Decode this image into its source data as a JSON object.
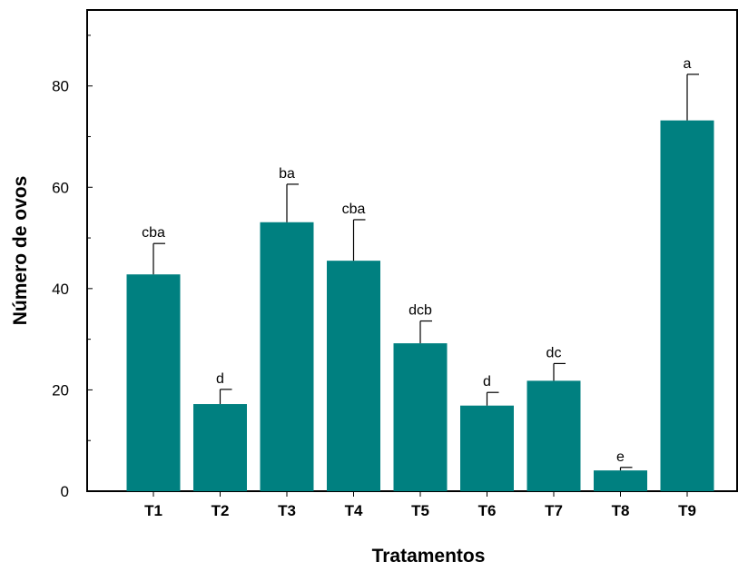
{
  "colors": {
    "bar": "#008080",
    "axis": "#000000",
    "error_bar": "#000000"
  },
  "chart_data": {
    "type": "bar",
    "title": "",
    "xlabel": "Tratamentos",
    "ylabel": "Número de ovos",
    "ylim": [
      0,
      95
    ],
    "yticks": [
      0,
      20,
      40,
      60,
      80
    ],
    "y_tick_labels": [
      "0",
      "20",
      "40",
      "60",
      "80"
    ],
    "grid": false,
    "legend": "none",
    "categories": [
      "T1",
      "T2",
      "T3",
      "T4",
      "T5",
      "T6",
      "T7",
      "T8",
      "T9"
    ],
    "values": [
      42.8,
      17.2,
      53.1,
      45.5,
      29.2,
      16.9,
      21.8,
      4.1,
      73.2
    ],
    "errors": [
      6.1,
      2.9,
      7.5,
      8.1,
      4.4,
      2.6,
      3.4,
      0.6,
      9.1
    ],
    "significance": [
      "cba",
      "d",
      "ba",
      "cba",
      "dcb",
      "d",
      "dc",
      "e",
      "a"
    ]
  }
}
